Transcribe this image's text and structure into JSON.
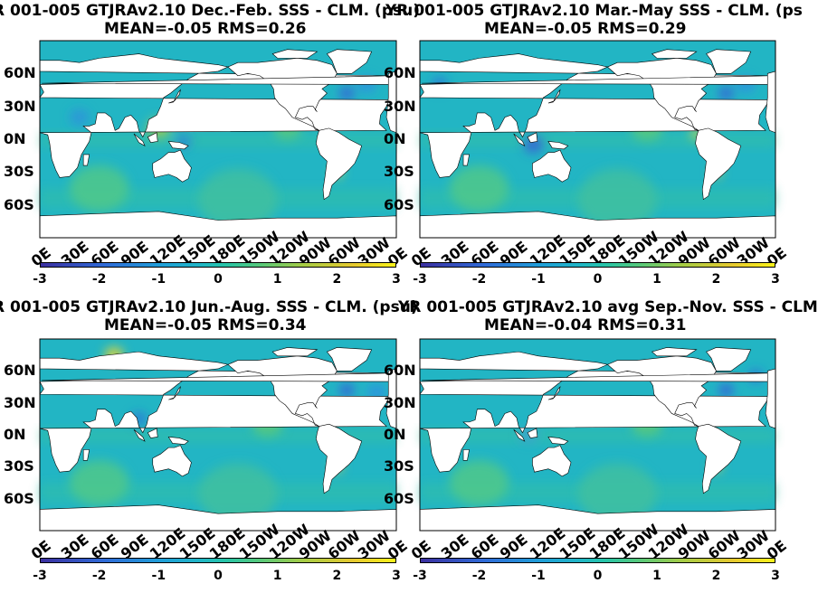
{
  "panels": [
    {
      "title_line1": "R 001-005 GTJRAv2.10  Dec.-Feb. SSS - CLM. (psu)",
      "title_line2": "MEAN=-0.05   RMS=0.26"
    },
    {
      "title_line1": "YR 001-005 GTJRAv2.10 Mar.-May SSS - CLM. (ps",
      "title_line2": "MEAN=-0.05   RMS=0.29"
    },
    {
      "title_line1": "R 001-005 GTJRAv2.10 Jun.-Aug. SSS - CLM. (psu)",
      "title_line2": "MEAN=-0.05   RMS=0.34"
    },
    {
      "title_line1": "YR 001-005 GTJRAv2.10 avg Sep.-Nov. SSS - CLM",
      "title_line2": "MEAN=-0.04   RMS=0.31"
    }
  ],
  "lat_labels": [
    "60N",
    "30N",
    "0N",
    "30S",
    "60S"
  ],
  "lon_labels": [
    "0E",
    "30E",
    "60E",
    "90E",
    "120E",
    "150E",
    "180E",
    "150W",
    "120W",
    "90W",
    "60W",
    "30W",
    "0E"
  ],
  "colorbar": {
    "ticks": [
      "-3",
      "-2",
      "-1",
      "0",
      "1",
      "2",
      "3"
    ],
    "colormap": "parula",
    "range": [
      -3,
      3
    ]
  },
  "colors": {
    "ocean_base": "#22b5c4",
    "land": "#ffffff",
    "coast": "#000000"
  }
}
